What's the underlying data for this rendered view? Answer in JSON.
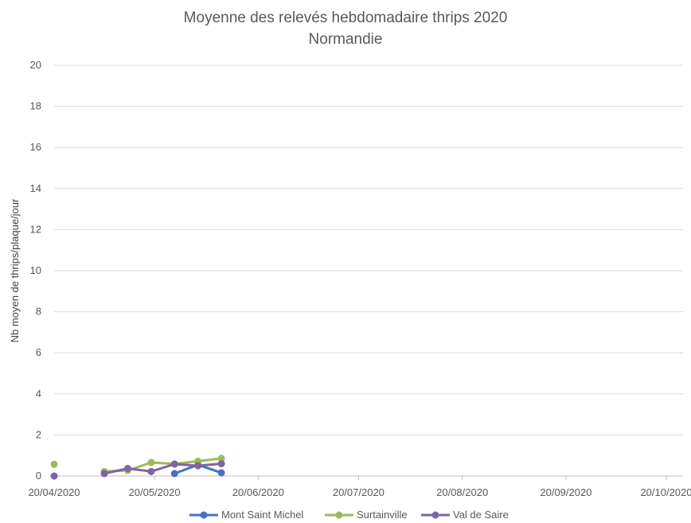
{
  "chart_data": {
    "type": "line",
    "title": [
      "Moyenne des relevés hebdomadaire thrips 2020",
      "Normandie"
    ],
    "xlabel": "",
    "ylabel": "Nb moyen de thrips/plaque/jour",
    "x_axis": {
      "kind": "date",
      "range": [
        "2020-04-20",
        "2020-10-25"
      ],
      "tick_dates": [
        "2020-04-20",
        "2020-05-20",
        "2020-06-20",
        "2020-07-20",
        "2020-08-20",
        "2020-09-20",
        "2020-10-20"
      ],
      "tick_labels": [
        "20/04/2020",
        "20/05/2020",
        "20/06/2020",
        "20/07/2020",
        "20/08/2020",
        "20/09/2020",
        "20/10/2020"
      ]
    },
    "y_axis": {
      "range": [
        0,
        20
      ],
      "ticks": [
        0,
        2,
        4,
        6,
        8,
        10,
        12,
        14,
        16,
        18,
        20
      ]
    },
    "grid": true,
    "legend_position": "bottom",
    "series": [
      {
        "name": "Mont Saint Michel",
        "color": "#4472c4",
        "points": [
          {
            "date": "2020-05-26",
            "value": 0.12
          },
          {
            "date": "2020-06-02",
            "value": 0.55
          },
          {
            "date": "2020-06-09",
            "value": 0.16
          }
        ]
      },
      {
        "name": "Surtainville",
        "color": "#9bbb59",
        "points": [
          {
            "date": "2020-04-20",
            "value": 0.57
          },
          {
            "date": "2020-05-05",
            "value": 0.22
          },
          {
            "date": "2020-05-12",
            "value": 0.27
          },
          {
            "date": "2020-05-19",
            "value": 0.66
          },
          {
            "date": "2020-05-26",
            "value": 0.59
          },
          {
            "date": "2020-06-02",
            "value": 0.72
          },
          {
            "date": "2020-06-09",
            "value": 0.86
          }
        ],
        "breaks_after": [
          "2020-04-20"
        ]
      },
      {
        "name": "Val de Saire",
        "color": "#8064a2",
        "points": [
          {
            "date": "2020-04-20",
            "value": 0.0
          },
          {
            "date": "2020-05-05",
            "value": 0.12
          },
          {
            "date": "2020-05-12",
            "value": 0.37
          },
          {
            "date": "2020-05-19",
            "value": 0.22
          },
          {
            "date": "2020-05-26",
            "value": 0.58
          },
          {
            "date": "2020-06-02",
            "value": 0.5
          },
          {
            "date": "2020-06-09",
            "value": 0.6
          }
        ],
        "breaks_after": [
          "2020-04-20"
        ]
      }
    ]
  }
}
